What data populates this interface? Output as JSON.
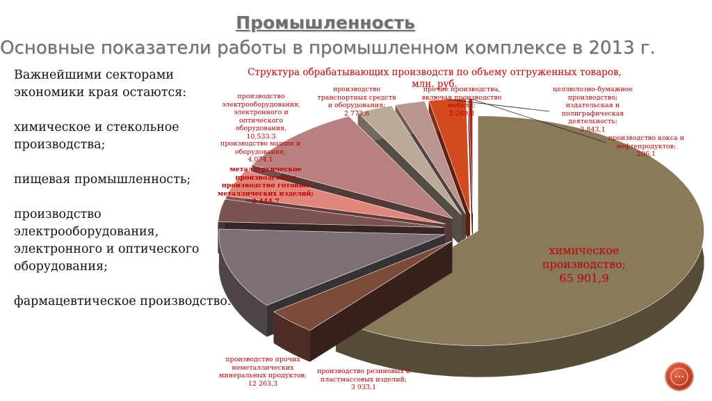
{
  "title": "Промышленность",
  "subtitle": "Основные показатели работы в промышленном комплексе в 2013 г.",
  "left_text": [
    "Важнейшими секторами экономики края остаются:",
    "химическое и стекольное производства;",
    "пищевая промышленность;",
    "производство электрооборудования, электронного и оптического оборудования;",
    "фармацевтическое производство."
  ],
  "chart_data": {
    "type": "pie",
    "title": "Структура обрабатывающих производств по объему отгруженных товаров, млн. руб.",
    "slices": [
      {
        "label": "химическое производство;",
        "value": 65901.9,
        "value_text": "65 901,9",
        "color": "#8a7a5c"
      },
      {
        "label": "производство резиновых и пластмассовых изделий;",
        "value": 3933.1,
        "value_text": "3 933,1",
        "color": "#7a4a3a"
      },
      {
        "label": "производство прочих неметаллических минеральных продуктов;",
        "value": 12263.3,
        "value_text": "12 263,3",
        "color": "#7d7074"
      },
      {
        "label": "металлургическое производство и производство готовых металлических изделий;",
        "value": 3444.7,
        "value_text": "3 444,7",
        "color": "#7a5252"
      },
      {
        "label": "производство машин и оборудования,",
        "value": 4074.1,
        "value_text": "4,074.1",
        "color": "#e0867a"
      },
      {
        "label": "производство электрооборудования, электронного и оптического оборудования,",
        "value": 10533.3,
        "value_text": "10,533.3",
        "color": "#b8807e"
      },
      {
        "label": "производство транспортных средств и оборудования;",
        "value": 2772.6,
        "value_text": "2 772,6",
        "color": "#b9ab96"
      },
      {
        "label": "прочие производства, включая производство мебели;",
        "value": 2289.8,
        "value_text": "2 289,8",
        "color": "#b9958e"
      },
      {
        "label": "целлюлозно-бумажное производство; издательская и полиграфическая деятельность;",
        "value": 2843.1,
        "value_text": "2 843,1",
        "color": "#d24a1e"
      },
      {
        "label": "производство кокса и нефтепродуктов;",
        "value": 296.1,
        "value_text": "296,1",
        "color": "#a8281a"
      }
    ]
  },
  "colors": {
    "title_gray": "#6f6f6f",
    "label_red": "#c00000",
    "nav_button": "#c9472a"
  },
  "icons": {
    "nav": "circle-nav-icon"
  }
}
